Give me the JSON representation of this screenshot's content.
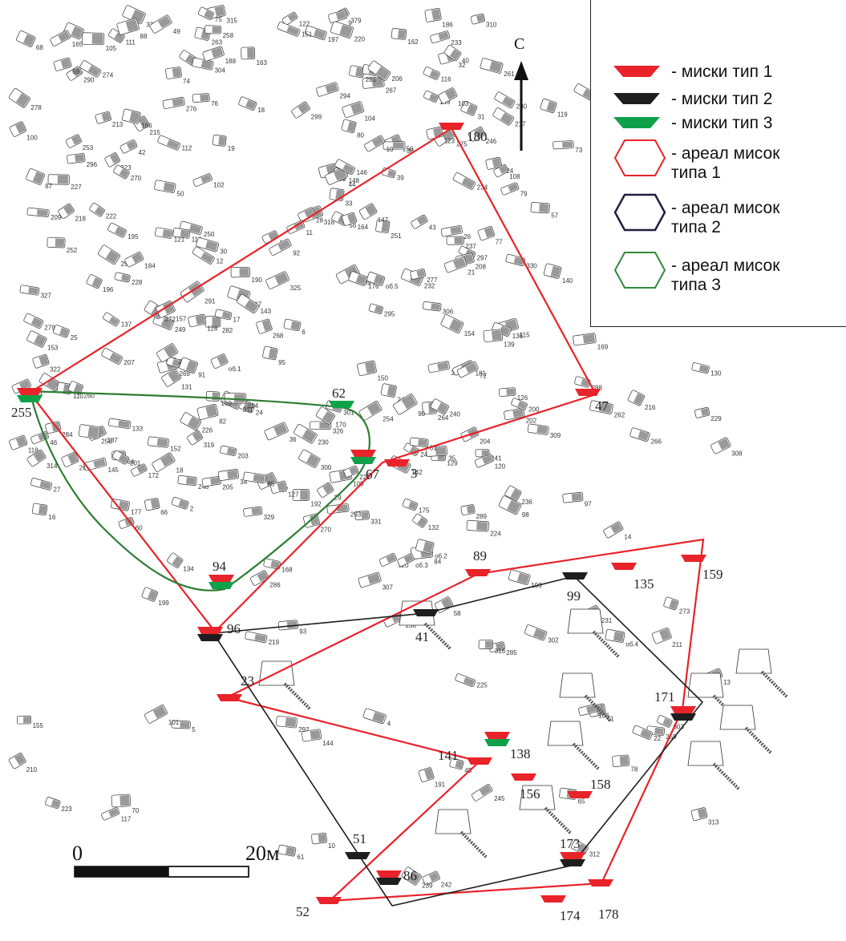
{
  "legend": {
    "items": [
      {
        "symbol": "bowl",
        "color": "#e8232a",
        "text": "- миски тип 1"
      },
      {
        "symbol": "bowl",
        "color": "#1e1e1e",
        "text": "- миски тип 2"
      },
      {
        "symbol": "bowl",
        "color": "#0fa14a",
        "text": "- миски тип 3"
      },
      {
        "symbol": "hexagon",
        "color": "#e8232a",
        "text": "- ареал мисок\nтипа 1"
      },
      {
        "symbol": "hexagon",
        "color": "#1e1e1e",
        "text": "- ареал мисок\nтипа 2"
      },
      {
        "symbol": "hexagon",
        "color": "#2e8b3a",
        "text": "- ареал мисок\nтипа 3"
      }
    ]
  },
  "north": {
    "label": "С"
  },
  "scale": {
    "start": "0",
    "end": "20м"
  },
  "finds": {
    "type1": [
      "180",
      "47",
      "255",
      "67",
      "3",
      "94",
      "96",
      "23",
      "89",
      "135",
      "159",
      "141",
      "138",
      "156",
      "158",
      "171",
      "173",
      "52",
      "86",
      "174",
      "178"
    ],
    "type2": [
      "96",
      "41",
      "99",
      "171",
      "51",
      "86",
      "173"
    ],
    "type3": [
      "255",
      "62",
      "67",
      "94",
      "138"
    ]
  },
  "labels": {
    "l180": "180",
    "l47": "47",
    "l255": "255",
    "l62": "62",
    "l67": "67",
    "l3": "3",
    "l94": "94",
    "l96": "96",
    "l41": "41",
    "l89": "89",
    "l99": "99",
    "l135": "135",
    "l159": "159",
    "l23": "23",
    "l141": "141",
    "l138": "138",
    "l156": "156",
    "l158": "158",
    "l171": "171",
    "l51": "51",
    "l86": "86",
    "l173": "173",
    "l52": "52",
    "l174": "174",
    "l178": "178"
  },
  "graves": [
    "331",
    "267",
    "265",
    "247",
    "2",
    "268",
    "266",
    "246",
    "332",
    "24",
    "301",
    "298",
    "289",
    "269",
    "264",
    "263",
    "245",
    "244",
    "64",
    "25",
    "323",
    "299",
    "297",
    "290",
    "240",
    "243",
    "300",
    "262",
    "254",
    "36",
    "324",
    "322",
    "317",
    "296",
    "295",
    "293",
    "283",
    "282",
    "288",
    "242",
    "330",
    "329",
    "320",
    "294",
    "194",
    "284",
    "248",
    "241",
    "379",
    "311",
    "328",
    "327",
    "325",
    "285",
    "252",
    "253",
    "18",
    "109",
    "309",
    "326",
    "318",
    "315",
    "314",
    "312",
    "292",
    "286",
    "251",
    "250",
    "181",
    "310",
    "308",
    "319",
    "316",
    "313",
    "291",
    "287",
    "249",
    "232",
    "187",
    "185",
    "184",
    "108",
    "306",
    "307",
    "281",
    "278",
    "304",
    "303",
    "238",
    "231",
    "214",
    "213",
    "186",
    "112",
    "110",
    "10",
    "280",
    "279",
    "277",
    "302",
    "270",
    "236",
    "237",
    "230",
    "215",
    "189",
    "190",
    "188",
    "113",
    "111",
    "53",
    "261",
    "276",
    "272",
    "271",
    "233",
    "217",
    "216",
    "56",
    "275",
    "273",
    "234",
    "218",
    "219",
    "191",
    "119",
    "115",
    "57",
    "260",
    "259",
    "274",
    "228",
    "239",
    "220",
    "195",
    "193",
    "207",
    "192",
    "117",
    "116",
    "258",
    "229",
    "227",
    "221",
    "223",
    "120",
    "118",
    "256",
    "226",
    "225",
    "222",
    "224",
    "199",
    "196",
    "197",
    "123",
    "122",
    "121",
    "58",
    "60",
    "270",
    "211",
    "210",
    "209",
    "201",
    "202",
    "203",
    "200",
    "126",
    "68",
    "63",
    "61",
    "59",
    "30",
    "28",
    "26",
    "170",
    "169",
    "168",
    "167",
    "166",
    "204",
    "205",
    "128",
    "129",
    "127",
    "70",
    "65",
    "66",
    "42",
    "162",
    "27",
    "31",
    "35",
    "151",
    "150",
    "208",
    "164",
    "165",
    "163",
    "130",
    "84",
    "75",
    "73",
    "71",
    "72",
    "5",
    "32",
    "33",
    "152",
    "149",
    "153",
    "132",
    "131",
    "82",
    "78",
    "76",
    "74",
    "4",
    "17",
    "45",
    "92",
    "101",
    "148",
    "133",
    "93",
    "79",
    "80",
    "77",
    "16",
    "6",
    "34",
    "43",
    "44",
    "46",
    "147",
    "145",
    "81",
    "38",
    "9",
    "11",
    "18",
    "100",
    "134",
    "160",
    "146",
    "95",
    "12",
    "14",
    "13",
    "19",
    "20",
    "140",
    "136",
    "102",
    "97",
    "10",
    "21",
    "106",
    "98",
    "85",
    "139",
    "91",
    "103",
    "137",
    "172",
    "29",
    "88",
    "22",
    "90",
    "105",
    "155",
    "154",
    "175",
    "48",
    "40",
    "39",
    "104",
    "142",
    "157",
    "176",
    "50",
    "49",
    "150",
    "143",
    "144",
    "206",
    "177",
    "87",
    "об.1",
    "об.2",
    "об.3",
    "об.4",
    "об.5"
  ]
}
